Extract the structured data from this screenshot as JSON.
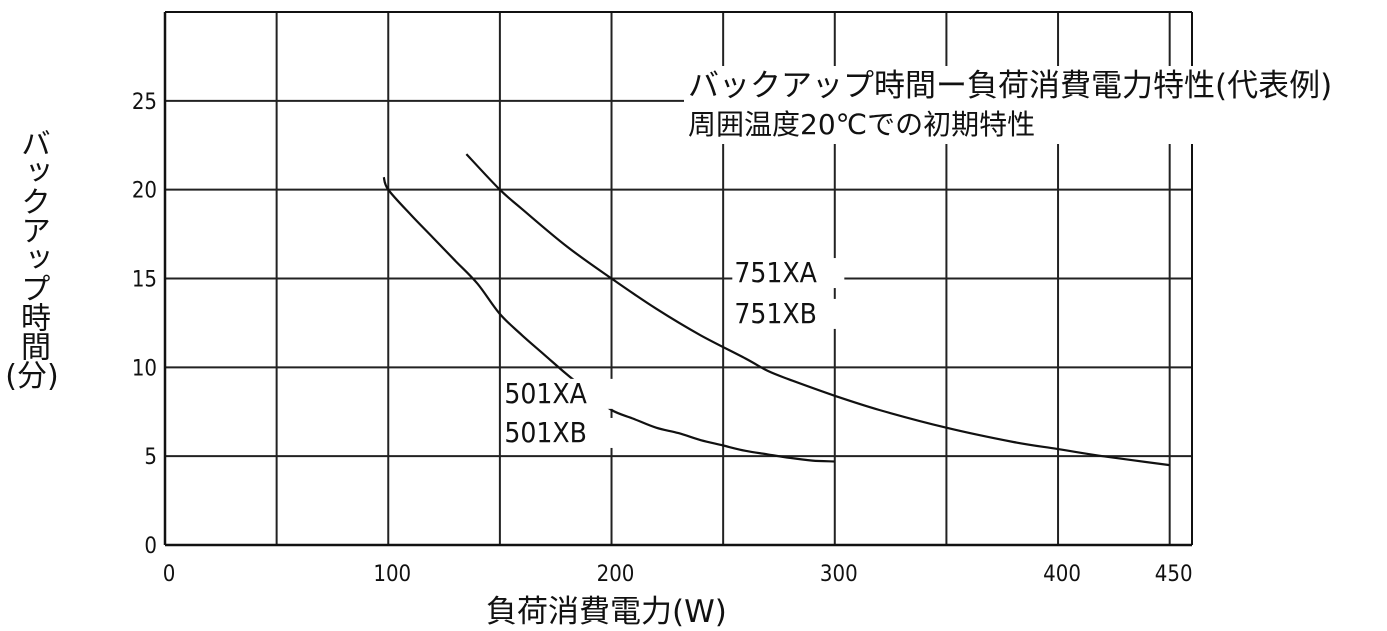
{
  "chart_data": {
    "type": "line",
    "title": "バックアップ時間ー負荷消費電力特性(代表例)",
    "subtitle": "周囲温度20℃での初期特性",
    "xlabel": "負荷消費電力(W)",
    "ylabel": "バックアップ時間",
    "ylabel_unit": "(分)",
    "xlim": [
      0,
      460
    ],
    "ylim": [
      0,
      30
    ],
    "x_ticks": [
      0,
      100,
      200,
      300,
      400,
      450
    ],
    "y_ticks": [
      0,
      5,
      10,
      15,
      20,
      25
    ],
    "grid": true,
    "series": [
      {
        "labels": [
          "501XA",
          "501XB"
        ],
        "x": [
          98,
          100,
          110,
          120,
          130,
          140,
          150,
          160,
          170,
          180,
          190,
          200,
          210,
          220,
          230,
          240,
          250,
          260,
          270,
          280,
          290,
          300
        ],
        "values": [
          20.7,
          20.0,
          18.6,
          17.3,
          16.0,
          14.7,
          13.0,
          11.8,
          10.7,
          9.6,
          8.6,
          7.6,
          7.1,
          6.6,
          6.3,
          5.9,
          5.6,
          5.3,
          5.1,
          4.9,
          4.75,
          4.7
        ]
      },
      {
        "labels": [
          "751XA",
          "751XB"
        ],
        "x": [
          135,
          150,
          160,
          180,
          200,
          220,
          240,
          260,
          270,
          280,
          300,
          320,
          350,
          380,
          400,
          420,
          450
        ],
        "values": [
          22.0,
          20.0,
          18.9,
          16.8,
          15.0,
          13.3,
          11.8,
          10.5,
          9.8,
          9.3,
          8.4,
          7.6,
          6.6,
          5.8,
          5.4,
          5.0,
          4.5
        ]
      }
    ]
  }
}
